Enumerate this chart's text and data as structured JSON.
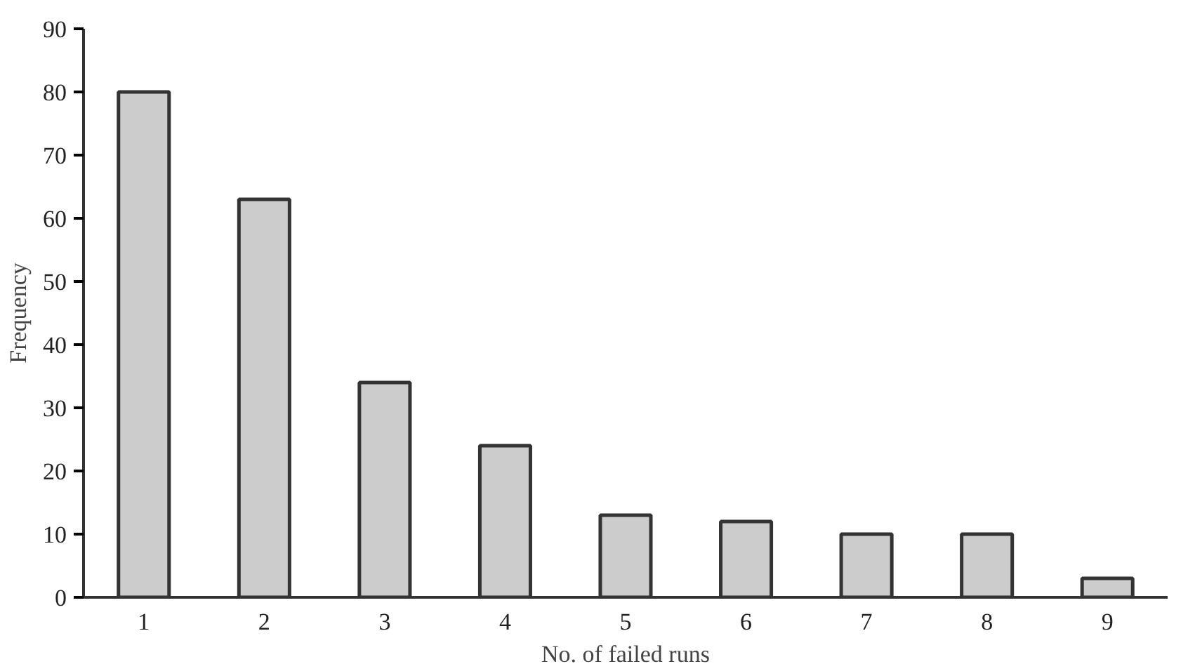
{
  "chart_data": {
    "type": "bar",
    "xlabel": "No. of failed runs",
    "ylabel": "Frequency",
    "categories": [
      "1",
      "2",
      "3",
      "4",
      "5",
      "6",
      "7",
      "8",
      "9"
    ],
    "values": [
      80,
      63,
      34,
      24,
      13,
      12,
      10,
      10,
      3
    ],
    "color": "#cccccc",
    "ylim": [
      0,
      90
    ],
    "yticks": [
      0,
      10,
      20,
      30,
      40,
      50,
      60,
      70,
      80,
      90
    ],
    "grid": false
  }
}
